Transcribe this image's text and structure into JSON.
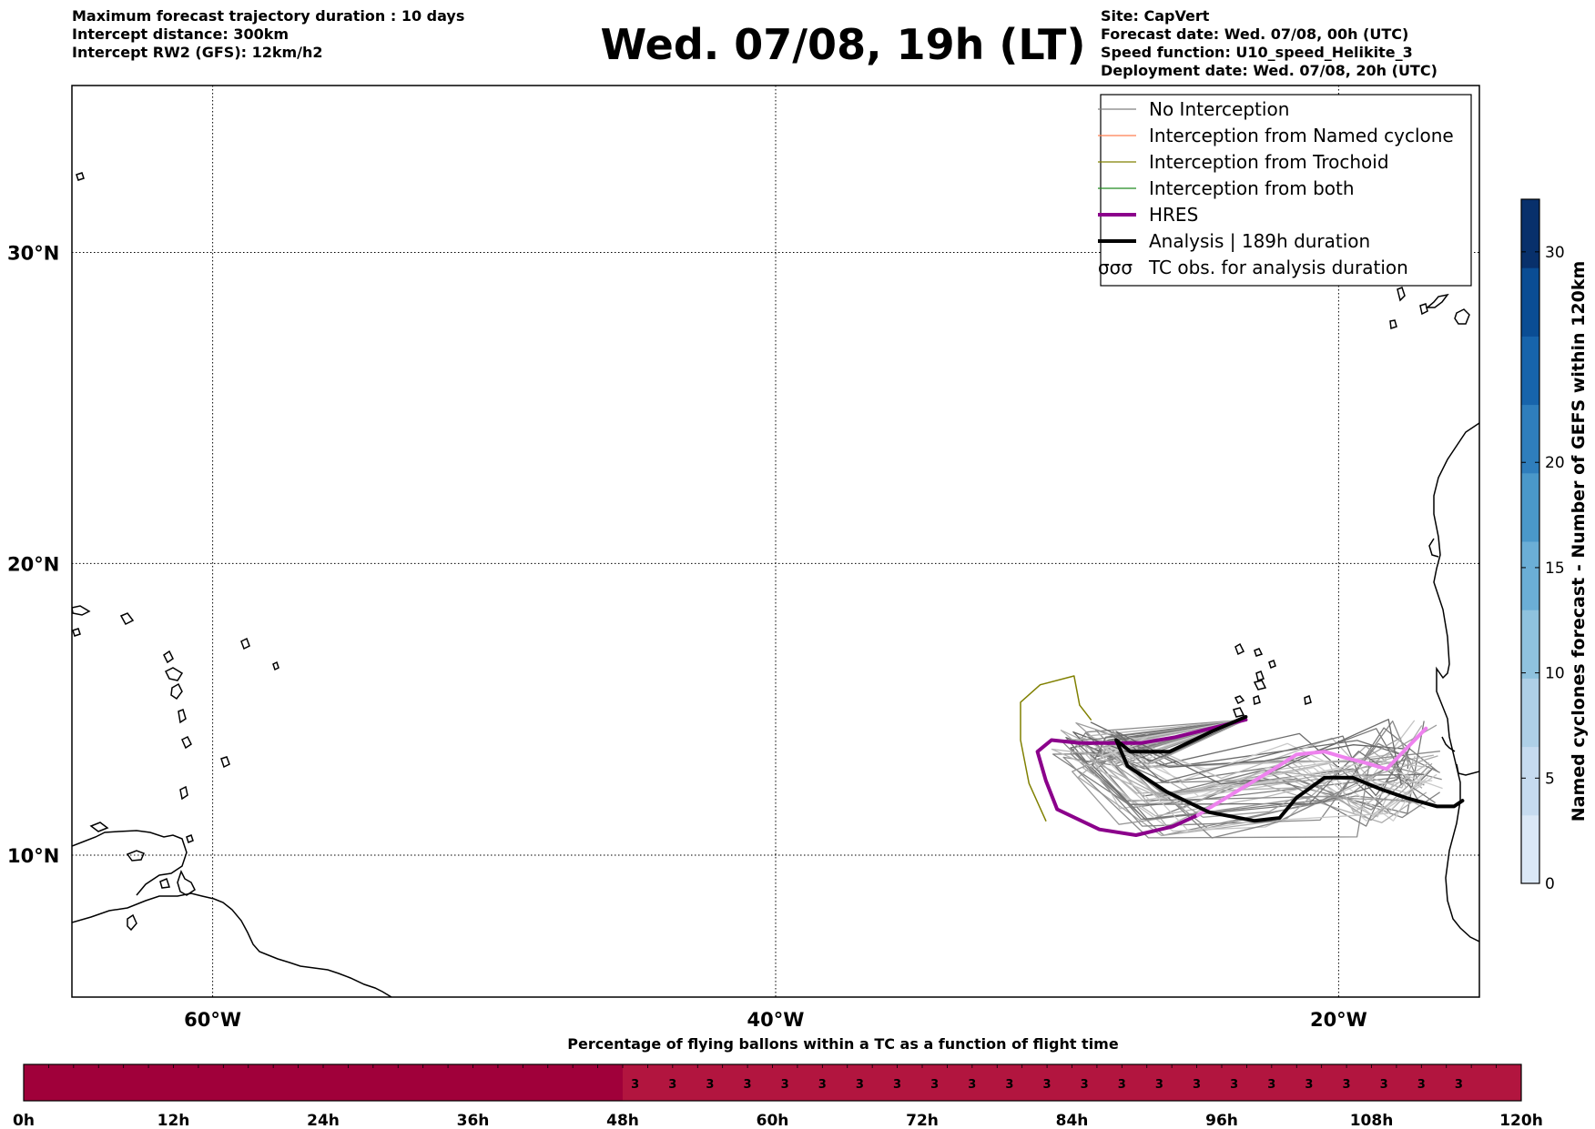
{
  "header": {
    "left_lines": [
      "Maximum forecast trajectory duration : 10 days",
      "Intercept distance: 300km",
      "Intercept RW2 (GFS):  12km/h2"
    ],
    "title": "Wed. 07/08, 19h (LT)",
    "right_lines": [
      "Site: CapVert",
      "Forecast date: Wed. 07/08, 00h (UTC)",
      "Speed function: U10_speed_Helikite_3",
      "Deployment date: Wed. 07/08, 20h (UTC)"
    ]
  },
  "legend": [
    {
      "label": "No Interception",
      "color": "#808080",
      "style": "thin"
    },
    {
      "label": "Interception from Named cyclone",
      "color": "#ff7f50",
      "style": "thin"
    },
    {
      "label": "Interception from Trochoid",
      "color": "#808000",
      "style": "thin"
    },
    {
      "label": "Interception from both",
      "color": "#228b22",
      "style": "thin"
    },
    {
      "label": "HRES",
      "color": "#8b008b",
      "style": "thick"
    },
    {
      "label": "Analysis | 189h duration",
      "color": "#000000",
      "style": "thick"
    },
    {
      "label": "TC obs. for analysis duration",
      "color": "#000000",
      "style": "symbol",
      "symbol": "σσσ"
    }
  ],
  "map": {
    "lon_range": [
      -65,
      -15
    ],
    "lat_range": [
      5,
      35
    ],
    "lon_ticks": [
      "60°W",
      "40°W",
      "20°W"
    ],
    "lat_ticks": [
      "30°N",
      "20°N",
      "10°N"
    ]
  },
  "colorbar": {
    "label": "Named cyclones forecast - Number of GEFS within 120km",
    "ticks": [
      "0",
      "5",
      "10",
      "15",
      "20",
      "30"
    ],
    "colors": [
      "#dbe8f6",
      "#c6dbef",
      "#aecfe6",
      "#8fc2de",
      "#6baed6",
      "#4a98c9",
      "#2f7ebc",
      "#1764ab",
      "#0a4d94",
      "#08306b"
    ]
  },
  "time_bar": {
    "title": "Percentage of flying ballons within a TC as a function of flight time",
    "ticks": [
      "0h",
      "12h",
      "24h",
      "36h",
      "48h",
      "60h",
      "72h",
      "84h",
      "96h",
      "108h",
      "120h"
    ],
    "high_color": "#a0003a",
    "low_color": "#b2153f",
    "value_label": "3",
    "value_labels_count": 23
  },
  "chart_data": {
    "type": "line",
    "xlabel": "",
    "ylabel": "",
    "xlim": [
      -65,
      -15
    ],
    "ylim": [
      5,
      35
    ],
    "grid": true,
    "series": [
      {
        "name": "HRES",
        "color": "#8b008b",
        "points": [
          [
            -23.3,
            14.7
          ],
          [
            -25.8,
            14.1
          ],
          [
            -27,
            13.9
          ],
          [
            -28.2,
            13.9
          ],
          [
            -29.2,
            13.9
          ],
          [
            -30.2,
            14.0
          ],
          [
            -30.7,
            13.6
          ],
          [
            -30.4,
            12.6
          ],
          [
            -30.0,
            11.6
          ],
          [
            -28.5,
            10.9
          ],
          [
            -27.2,
            10.7
          ],
          [
            -25.9,
            11.0
          ],
          [
            -25,
            11.4
          ]
        ]
      },
      {
        "name": "HRES (continued)",
        "color": "#ee82ee",
        "points": [
          [
            -25,
            11.4
          ],
          [
            -24.0,
            12.0
          ],
          [
            -22.3,
            13.0
          ],
          [
            -21.5,
            13.5
          ],
          [
            -20.5,
            13.6
          ],
          [
            -19.8,
            13.4
          ],
          [
            -19.0,
            13.2
          ],
          [
            -18.3,
            13.0
          ],
          [
            -17.9,
            13.4
          ],
          [
            -16.9,
            14.4
          ]
        ]
      },
      {
        "name": "Analysis | 189h duration",
        "color": "#000000",
        "points": [
          [
            -23.3,
            14.8
          ],
          [
            -24.5,
            14.3
          ],
          [
            -26,
            13.6
          ],
          [
            -27.4,
            13.6
          ],
          [
            -27.9,
            14.0
          ],
          [
            -27.5,
            13.1
          ],
          [
            -26.1,
            12.2
          ],
          [
            -24.6,
            11.5
          ],
          [
            -23.0,
            11.2
          ],
          [
            -22.1,
            11.3
          ],
          [
            -21.5,
            12.0
          ],
          [
            -20.5,
            12.7
          ],
          [
            -19.5,
            12.7
          ],
          [
            -18.5,
            12.3
          ],
          [
            -17.6,
            12.0
          ],
          [
            -16.5,
            11.7
          ],
          [
            -15.9,
            11.7
          ],
          [
            -15.6,
            11.9
          ]
        ]
      },
      {
        "name": "Interception from Trochoid",
        "color": "#808000",
        "points": [
          [
            -30.4,
            11.2
          ],
          [
            -31,
            12.5
          ],
          [
            -31.3,
            14
          ],
          [
            -31.3,
            15.3
          ],
          [
            -30.6,
            15.9
          ],
          [
            -29.4,
            16.2
          ],
          [
            -29.2,
            15.2
          ],
          [
            -28.8,
            14.7
          ]
        ]
      }
    ]
  }
}
